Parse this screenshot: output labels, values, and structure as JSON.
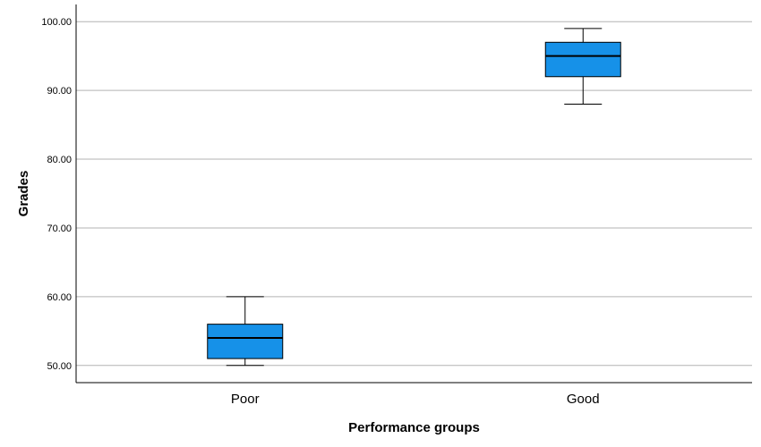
{
  "chart_data": {
    "type": "box",
    "categories": [
      "Poor",
      "Good"
    ],
    "boxes": [
      {
        "category": "Poor",
        "min": 50,
        "q1": 51,
        "median": 54,
        "q3": 56,
        "max": 60
      },
      {
        "category": "Good",
        "min": 88,
        "q1": 92,
        "median": 95,
        "q3": 97,
        "max": 99
      }
    ],
    "xlabel": "Performance groups",
    "ylabel": "Grades",
    "ylim": [
      47.5,
      102.5
    ],
    "yticks": [
      50,
      60,
      70,
      80,
      90,
      100
    ],
    "ytick_labels": [
      "50.00",
      "60.00",
      "70.00",
      "80.00",
      "90.00",
      "100.00"
    ],
    "grid": true,
    "colors": {
      "box_fill": "#1691E8",
      "box_stroke": "#000000",
      "grid": "#B3B3B3",
      "axis": "#000000"
    }
  }
}
